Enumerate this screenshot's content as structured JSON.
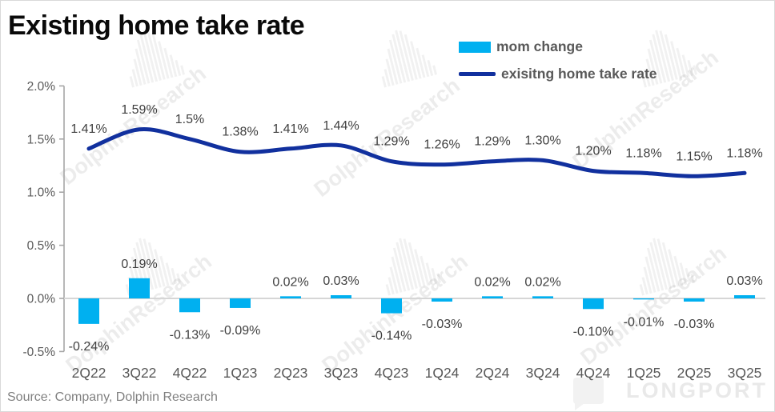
{
  "title": "Existing home take rate",
  "source_note": "Source: Company, Dolphin Research",
  "watermark": {
    "text": "DolphinResearch",
    "brand": "LONGPORT"
  },
  "colors": {
    "bar": "#00B0F0",
    "line": "#11309E",
    "axis": "#A6A6A6",
    "zero_line": "#D6D6D6",
    "data_label": "#404040",
    "axis_label": "#595959"
  },
  "legend": {
    "items": [
      {
        "label": "mom change",
        "swatch": "bar"
      },
      {
        "label": "exisitng home take rate",
        "swatch": "line"
      }
    ]
  },
  "chart_data": {
    "type": "combo-bar-line",
    "title": "Existing home take rate",
    "categories": [
      "2Q22",
      "3Q22",
      "4Q22",
      "1Q23",
      "2Q23",
      "3Q23",
      "4Q23",
      "1Q24",
      "2Q24",
      "3Q24",
      "4Q24",
      "1Q25",
      "2Q25",
      "3Q25"
    ],
    "y_axis": {
      "unit": "percent",
      "range": [
        -0.5,
        2.0
      ],
      "tick_values": [
        2.0,
        1.5,
        1.0,
        0.5,
        0.0,
        -0.5
      ],
      "tick_labels": [
        "2.0%",
        "1.5%",
        "1.0%",
        "0.5%",
        "0.0%",
        "-0.5%"
      ]
    },
    "grid": false,
    "legend_position": "top-right",
    "series": [
      {
        "name": "mom change",
        "type": "bar",
        "values": [
          -0.24,
          0.19,
          -0.13,
          -0.09,
          0.02,
          0.03,
          -0.14,
          -0.03,
          0.02,
          0.02,
          -0.1,
          -0.01,
          -0.03,
          0.03
        ],
        "labels": [
          "-0.24%",
          "0.19%",
          "-0.13%",
          "-0.09%",
          "0.02%",
          "0.03%",
          "-0.14%",
          "-0.03%",
          "0.02%",
          "0.02%",
          "-0.10%",
          "-0.01%",
          "-0.03%",
          "0.03%"
        ]
      },
      {
        "name": "exisitng home take rate",
        "type": "line",
        "values": [
          1.41,
          1.59,
          1.5,
          1.38,
          1.41,
          1.44,
          1.29,
          1.26,
          1.29,
          1.3,
          1.2,
          1.18,
          1.15,
          1.18
        ],
        "labels": [
          "1.41%",
          "1.59%",
          "1.5%",
          "1.38%",
          "1.41%",
          "1.44%",
          "1.29%",
          "1.26%",
          "1.29%",
          "1.30%",
          "1.20%",
          "1.18%",
          "1.15%",
          "1.18%"
        ]
      }
    ]
  }
}
